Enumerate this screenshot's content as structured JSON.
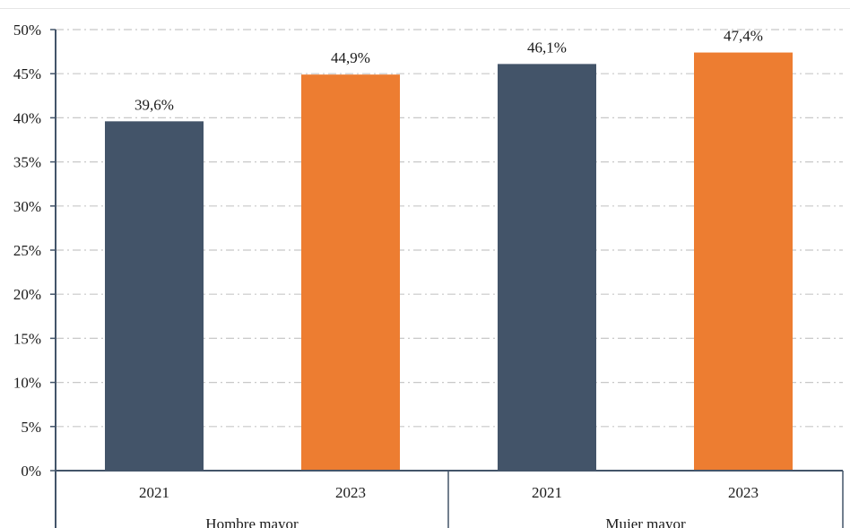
{
  "chart_data": {
    "type": "bar",
    "groups": [
      "Hombre mayor",
      "Mujer mayor"
    ],
    "categories": [
      "2021",
      "2023",
      "2021",
      "2023"
    ],
    "category_group": [
      0,
      0,
      1,
      1
    ],
    "values": [
      39.6,
      44.9,
      46.1,
      47.4
    ],
    "data_labels": [
      "39,6%",
      "44,9%",
      "46,1%",
      "47,4%"
    ],
    "bar_colors": [
      "#435469",
      "#ED7D31",
      "#435469",
      "#ED7D31"
    ],
    "y_ticks": [
      0,
      5,
      10,
      15,
      20,
      25,
      30,
      35,
      40,
      45,
      50
    ],
    "y_tick_labels": [
      "0%",
      "5%",
      "10%",
      "15%",
      "20%",
      "25%",
      "30%",
      "35%",
      "40%",
      "45%",
      "50%"
    ],
    "ylim": [
      0,
      50
    ],
    "grid": true,
    "grid_style": "dash-dot",
    "axis_color": "#435469",
    "grid_color": "#c8c8c8",
    "title": "",
    "xlabel": "",
    "ylabel": ""
  }
}
